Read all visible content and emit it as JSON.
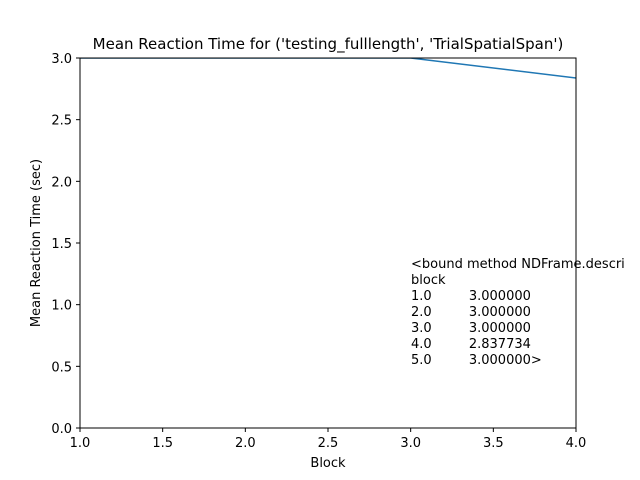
{
  "chart_data": {
    "type": "line",
    "title": "Mean Reaction Time for ('testing_fulllength', 'TrialSpatialSpan')",
    "xlabel": "Block",
    "ylabel": "Mean Reaction Time (sec)",
    "xlim": [
      1.0,
      4.0
    ],
    "ylim": [
      0.0,
      3.0
    ],
    "xticks": [
      "1.0",
      "1.5",
      "2.0",
      "2.5",
      "3.0",
      "3.5",
      "4.0"
    ],
    "yticks": [
      "0.0",
      "0.5",
      "1.0",
      "1.5",
      "2.0",
      "2.5",
      "3.0"
    ],
    "grid": false,
    "series": [
      {
        "color": "#1f77b4",
        "x": [
          1.0,
          2.0,
          3.0,
          4.0,
          5.0
        ],
        "y": [
          3.0,
          3.0,
          3.0,
          2.837734,
          3.0
        ]
      }
    ],
    "annotation": {
      "lines": [
        "<bound method NDFrame.descri",
        "block",
        "1.0         3.000000",
        "2.0         3.000000",
        "3.0         3.000000",
        "4.0         2.837734",
        "5.0         3.000000>"
      ]
    }
  }
}
